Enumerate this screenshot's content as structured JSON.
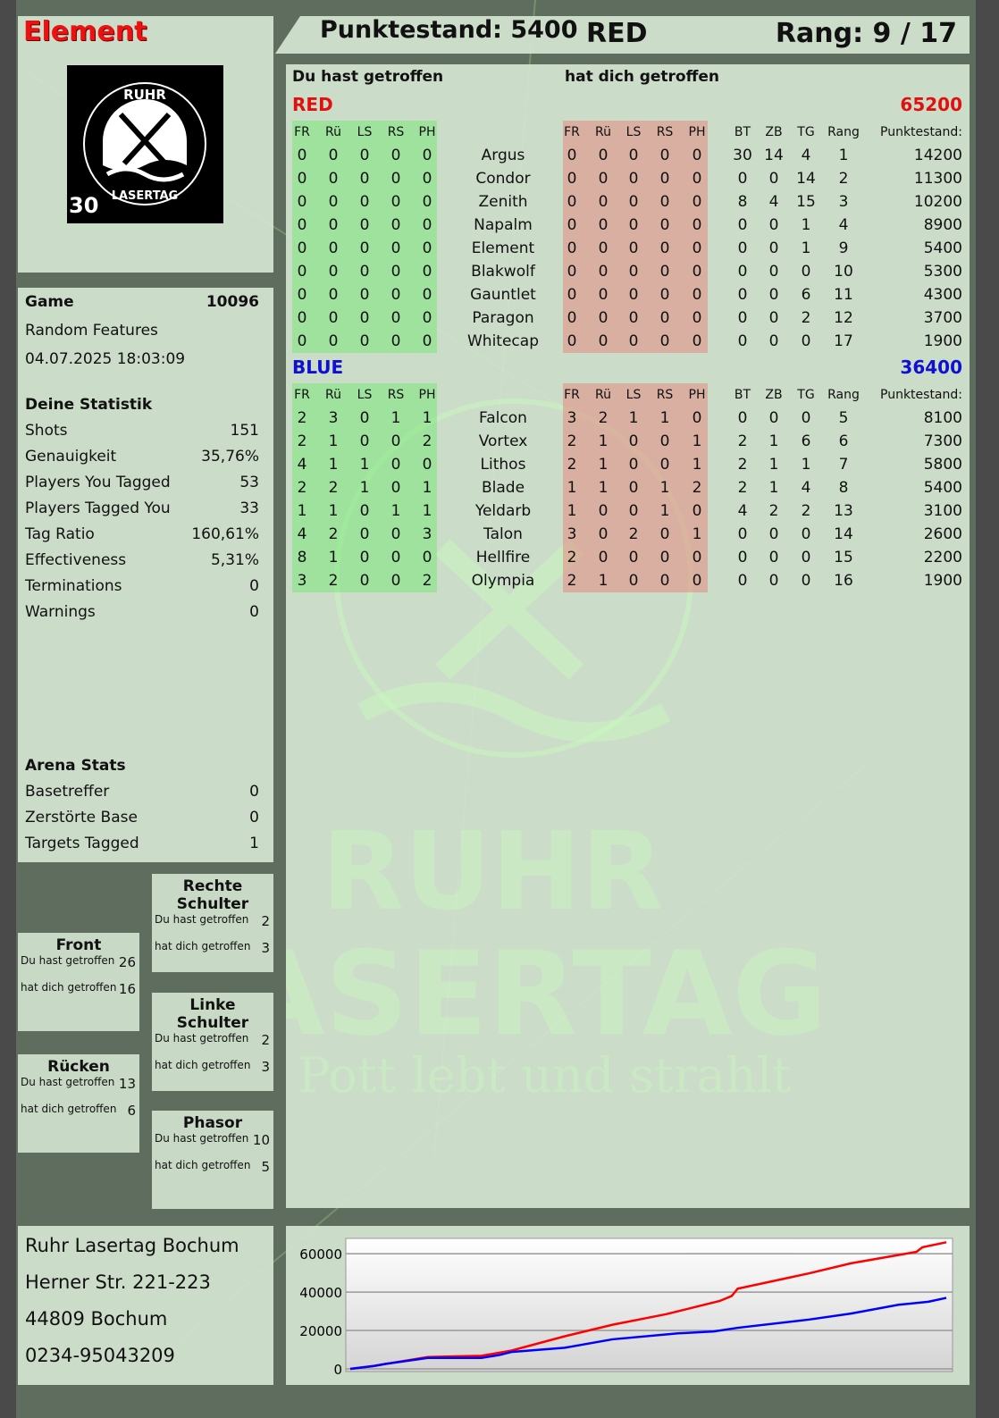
{
  "player": {
    "name": "Element",
    "logo_badge": "30",
    "logo_text_top": "RUHR",
    "logo_text_bottom": "LASERTAG"
  },
  "header": {
    "score_label": "Punktestand: 5400",
    "team": "RED",
    "rank_label": "Rang: 9 / 17"
  },
  "main": {
    "col_you_hit": "Du hast getroffen",
    "col_hit_you": "hat dich getroffen",
    "headers": {
      "hit": [
        "FR",
        "Rü",
        "LS",
        "RS",
        "PH"
      ],
      "bt": "BT",
      "zb": "ZB",
      "tg": "TG",
      "rang": "Rang",
      "pts": "Punktestand:"
    },
    "teams": [
      {
        "name": "RED",
        "total": "65200",
        "color": "#e01010",
        "players": [
          {
            "you_hit": [
              "0",
              "0",
              "0",
              "0",
              "0"
            ],
            "name": "Argus",
            "hit_you": [
              "0",
              "0",
              "0",
              "0",
              "0"
            ],
            "bt": "30",
            "zb": "14",
            "tg": "4",
            "rang": "1",
            "pts": "14200"
          },
          {
            "you_hit": [
              "0",
              "0",
              "0",
              "0",
              "0"
            ],
            "name": "Condor",
            "hit_you": [
              "0",
              "0",
              "0",
              "0",
              "0"
            ],
            "bt": "0",
            "zb": "0",
            "tg": "14",
            "rang": "2",
            "pts": "11300"
          },
          {
            "you_hit": [
              "0",
              "0",
              "0",
              "0",
              "0"
            ],
            "name": "Zenith",
            "hit_you": [
              "0",
              "0",
              "0",
              "0",
              "0"
            ],
            "bt": "8",
            "zb": "4",
            "tg": "15",
            "rang": "3",
            "pts": "10200"
          },
          {
            "you_hit": [
              "0",
              "0",
              "0",
              "0",
              "0"
            ],
            "name": "Napalm",
            "hit_you": [
              "0",
              "0",
              "0",
              "0",
              "0"
            ],
            "bt": "0",
            "zb": "0",
            "tg": "1",
            "rang": "4",
            "pts": "8900"
          },
          {
            "you_hit": [
              "0",
              "0",
              "0",
              "0",
              "0"
            ],
            "name": "Element",
            "hit_you": [
              "0",
              "0",
              "0",
              "0",
              "0"
            ],
            "bt": "0",
            "zb": "0",
            "tg": "1",
            "rang": "9",
            "pts": "5400"
          },
          {
            "you_hit": [
              "0",
              "0",
              "0",
              "0",
              "0"
            ],
            "name": "Blakwolf",
            "hit_you": [
              "0",
              "0",
              "0",
              "0",
              "0"
            ],
            "bt": "0",
            "zb": "0",
            "tg": "0",
            "rang": "10",
            "pts": "5300"
          },
          {
            "you_hit": [
              "0",
              "0",
              "0",
              "0",
              "0"
            ],
            "name": "Gauntlet",
            "hit_you": [
              "0",
              "0",
              "0",
              "0",
              "0"
            ],
            "bt": "0",
            "zb": "0",
            "tg": "6",
            "rang": "11",
            "pts": "4300"
          },
          {
            "you_hit": [
              "0",
              "0",
              "0",
              "0",
              "0"
            ],
            "name": "Paragon",
            "hit_you": [
              "0",
              "0",
              "0",
              "0",
              "0"
            ],
            "bt": "0",
            "zb": "0",
            "tg": "2",
            "rang": "12",
            "pts": "3700"
          },
          {
            "you_hit": [
              "0",
              "0",
              "0",
              "0",
              "0"
            ],
            "name": "Whitecap",
            "hit_you": [
              "0",
              "0",
              "0",
              "0",
              "0"
            ],
            "bt": "0",
            "zb": "0",
            "tg": "0",
            "rang": "17",
            "pts": "1900"
          }
        ]
      },
      {
        "name": "BLUE",
        "total": "36400",
        "color": "#1010d0",
        "players": [
          {
            "you_hit": [
              "2",
              "3",
              "0",
              "1",
              "1"
            ],
            "name": "Falcon",
            "hit_you": [
              "3",
              "2",
              "1",
              "1",
              "0"
            ],
            "bt": "0",
            "zb": "0",
            "tg": "0",
            "rang": "5",
            "pts": "8100"
          },
          {
            "you_hit": [
              "2",
              "1",
              "0",
              "0",
              "2"
            ],
            "name": "Vortex",
            "hit_you": [
              "2",
              "1",
              "0",
              "0",
              "1"
            ],
            "bt": "2",
            "zb": "1",
            "tg": "6",
            "rang": "6",
            "pts": "7300"
          },
          {
            "you_hit": [
              "4",
              "1",
              "1",
              "0",
              "0"
            ],
            "name": "Lithos",
            "hit_you": [
              "2",
              "1",
              "0",
              "0",
              "1"
            ],
            "bt": "2",
            "zb": "1",
            "tg": "1",
            "rang": "7",
            "pts": "5800"
          },
          {
            "you_hit": [
              "2",
              "2",
              "1",
              "0",
              "1"
            ],
            "name": "Blade",
            "hit_you": [
              "1",
              "1",
              "0",
              "1",
              "2"
            ],
            "bt": "2",
            "zb": "1",
            "tg": "4",
            "rang": "8",
            "pts": "5400"
          },
          {
            "you_hit": [
              "1",
              "1",
              "0",
              "1",
              "1"
            ],
            "name": "Yeldarb",
            "hit_you": [
              "1",
              "0",
              "0",
              "1",
              "0"
            ],
            "bt": "4",
            "zb": "2",
            "tg": "2",
            "rang": "13",
            "pts": "3100"
          },
          {
            "you_hit": [
              "4",
              "2",
              "0",
              "0",
              "3"
            ],
            "name": "Talon",
            "hit_you": [
              "3",
              "0",
              "2",
              "0",
              "1"
            ],
            "bt": "0",
            "zb": "0",
            "tg": "0",
            "rang": "14",
            "pts": "2600"
          },
          {
            "you_hit": [
              "8",
              "1",
              "0",
              "0",
              "0"
            ],
            "name": "Hellfire",
            "hit_you": [
              "2",
              "0",
              "0",
              "0",
              "0"
            ],
            "bt": "0",
            "zb": "0",
            "tg": "0",
            "rang": "15",
            "pts": "2200"
          },
          {
            "you_hit": [
              "3",
              "2",
              "0",
              "0",
              "2"
            ],
            "name": "Olympia",
            "hit_you": [
              "2",
              "1",
              "0",
              "0",
              "0"
            ],
            "bt": "0",
            "zb": "0",
            "tg": "0",
            "rang": "16",
            "pts": "1900"
          }
        ]
      }
    ]
  },
  "game": {
    "label": "Game",
    "number": "10096",
    "mode": "Random Features",
    "datetime": "04.07.2025 18:03:09"
  },
  "stats": {
    "title": "Deine Statistik",
    "rows": [
      {
        "label": "Shots",
        "value": "151"
      },
      {
        "label": "Genauigkeit",
        "value": "35,76%"
      },
      {
        "label": "Players You Tagged",
        "value": "53"
      },
      {
        "label": "Players Tagged You",
        "value": "33"
      },
      {
        "label": "Tag Ratio",
        "value": "160,61%"
      },
      {
        "label": "Effectiveness",
        "value": "5,31%"
      },
      {
        "label": "Terminations",
        "value": "0"
      },
      {
        "label": "Warnings",
        "value": "0"
      }
    ]
  },
  "arena": {
    "title": "Arena Stats",
    "rows": [
      {
        "label": "Basetreffer",
        "value": "0"
      },
      {
        "label": "Zerstörte Base",
        "value": "0"
      },
      {
        "label": "Targets Tagged",
        "value": "1"
      }
    ]
  },
  "body_parts": {
    "you_hit_label": "Du hast getroffen",
    "hit_you_label": "hat dich getroffen",
    "front": {
      "title": "Front",
      "you_hit": "26",
      "hit_you": "16"
    },
    "back": {
      "title": "Rücken",
      "you_hit": "13",
      "hit_you": "6"
    },
    "right_shoulder": {
      "title": "Rechte Schulter",
      "you_hit": "2",
      "hit_you": "3"
    },
    "left_shoulder": {
      "title": "Linke Schulter",
      "you_hit": "2",
      "hit_you": "3"
    },
    "phasor": {
      "title": "Phasor",
      "you_hit": "10",
      "hit_you": "5"
    }
  },
  "address": {
    "line1": "Ruhr Lasertag Bochum",
    "line2": "Herner Str. 221-223",
    "line3": "44809 Bochum",
    "line4": "0234-95043209"
  },
  "watermark": {
    "line1": "RUHR",
    "line2": "LASERTAG",
    "slogan": "Der Pott lebt und strahlt"
  },
  "chart_data": {
    "type": "line",
    "ylim": [
      0,
      68000
    ],
    "yticks": [
      "60000",
      "40000",
      "20000",
      "0"
    ],
    "ytick_values": [
      60000,
      40000,
      20000,
      0
    ],
    "grid": true,
    "series": [
      {
        "color": "#ff0000",
        "points": [
          [
            0,
            0
          ],
          [
            4,
            1500
          ],
          [
            6,
            2600
          ],
          [
            13,
            6200
          ],
          [
            22,
            6800
          ],
          [
            27,
            9500
          ],
          [
            36,
            17000
          ],
          [
            44,
            23000
          ],
          [
            53,
            28500
          ],
          [
            62,
            35400
          ],
          [
            64,
            38000
          ],
          [
            65,
            41800
          ],
          [
            77,
            49800
          ],
          [
            84,
            55000
          ],
          [
            95,
            61000
          ],
          [
            96,
            63400
          ],
          [
            100,
            66000
          ]
        ]
      },
      {
        "color": "#0000ff",
        "points": [
          [
            0,
            0
          ],
          [
            4,
            1500
          ],
          [
            6,
            2600
          ],
          [
            13,
            5700
          ],
          [
            22,
            5700
          ],
          [
            25,
            7200
          ],
          [
            27,
            8800
          ],
          [
            36,
            11000
          ],
          [
            44,
            15400
          ],
          [
            55,
            18500
          ],
          [
            61,
            19500
          ],
          [
            65,
            21400
          ],
          [
            77,
            25700
          ],
          [
            84,
            28800
          ],
          [
            92,
            33400
          ],
          [
            97,
            35000
          ],
          [
            100,
            37000
          ]
        ]
      }
    ]
  }
}
